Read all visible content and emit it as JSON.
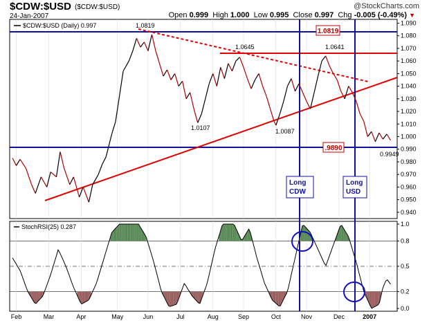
{
  "header": {
    "symbol": "$CDW:$USD",
    "symbol_paren": "($CDW:$USD)",
    "date": "24-Jan-2007",
    "brand": "@StockCharts.com",
    "ohlc": {
      "open_label": "Open",
      "open": "0.999",
      "high_label": "High",
      "high": "1.000",
      "low_label": "Low",
      "low": "0.995",
      "close_label": "Close",
      "close": "0.997",
      "chg_label": "Chg",
      "chg": "-0.005 (-0.49%)"
    }
  },
  "chart_data": [
    {
      "type": "line",
      "legend": "$CDW:$USD (Daily) 0.997",
      "y_range": [
        0.935,
        1.093
      ],
      "y_ticks": [
        "1.090",
        "1.080",
        "1.070",
        "1.060",
        "1.050",
        "1.040",
        "1.030",
        "1.020",
        "1.010",
        "1.000",
        "0.990",
        "0.980",
        "0.970",
        "0.960",
        "0.950",
        "0.940"
      ],
      "x_tick_labels": [
        "Feb",
        "Mar",
        "Apr",
        "May",
        "Jun",
        "Jul",
        "Aug",
        "Sep",
        "Oct",
        "Nov",
        "Dec",
        "2007"
      ],
      "series": [
        {
          "values_rel": [
            [
              0,
              0.983
            ],
            [
              0.01,
              0.977
            ],
            [
              0.02,
              0.982
            ],
            [
              0.035,
              0.975
            ],
            [
              0.05,
              0.962
            ],
            [
              0.06,
              0.955
            ],
            [
              0.075,
              0.968
            ],
            [
              0.09,
              0.96
            ],
            [
              0.1,
              0.972
            ],
            [
              0.115,
              0.968
            ],
            [
              0.125,
              0.988
            ],
            [
              0.135,
              0.975
            ],
            [
              0.15,
              0.962
            ],
            [
              0.16,
              0.968
            ],
            [
              0.175,
              0.952
            ],
            [
              0.185,
              0.96
            ],
            [
              0.2,
              0.948
            ],
            [
              0.21,
              0.962
            ],
            [
              0.225,
              0.97
            ],
            [
              0.235,
              0.978
            ],
            [
              0.245,
              0.984
            ],
            [
              0.26,
              1.002
            ],
            [
              0.27,
              1.012
            ],
            [
              0.28,
              1.032
            ],
            [
              0.29,
              1.052
            ],
            [
              0.305,
              1.06
            ],
            [
              0.315,
              1.068
            ],
            [
              0.325,
              1.078
            ],
            [
              0.335,
              1.071
            ],
            [
              0.345,
              1.075
            ],
            [
              0.355,
              1.068
            ],
            [
              0.365,
              1.081
            ],
            [
              0.375,
              1.068
            ],
            [
              0.385,
              1.058
            ],
            [
              0.395,
              1.048
            ],
            [
              0.405,
              1.053
            ],
            [
              0.415,
              1.045
            ],
            [
              0.425,
              1.05
            ],
            [
              0.435,
              1.04
            ],
            [
              0.445,
              1.044
            ],
            [
              0.455,
              1.03
            ],
            [
              0.465,
              1.035
            ],
            [
              0.475,
              1.022
            ],
            [
              0.485,
              1.011
            ],
            [
              0.495,
              1.018
            ],
            [
              0.505,
              1.03
            ],
            [
              0.515,
              1.042
            ],
            [
              0.525,
              1.05
            ],
            [
              0.535,
              1.04
            ],
            [
              0.545,
              1.055
            ],
            [
              0.555,
              1.046
            ],
            [
              0.565,
              1.058
            ],
            [
              0.575,
              1.052
            ],
            [
              0.585,
              1.06
            ],
            [
              0.595,
              1.063
            ],
            [
              0.605,
              1.055
            ],
            [
              0.615,
              1.046
            ],
            [
              0.625,
              1.038
            ],
            [
              0.635,
              1.045
            ],
            [
              0.645,
              1.05
            ],
            [
              0.655,
              1.04
            ],
            [
              0.665,
              1.032
            ],
            [
              0.675,
              1.022
            ],
            [
              0.685,
              1.012
            ],
            [
              0.69,
              1.009
            ],
            [
              0.7,
              1.018
            ],
            [
              0.71,
              1.028
            ],
            [
              0.72,
              1.04
            ],
            [
              0.73,
              1.046
            ],
            [
              0.74,
              1.036
            ],
            [
              0.75,
              1.042
            ],
            [
              0.76,
              1.035
            ],
            [
              0.77,
              1.028
            ],
            [
              0.78,
              1.022
            ],
            [
              0.79,
              1.035
            ],
            [
              0.8,
              1.048
            ],
            [
              0.81,
              1.06
            ],
            [
              0.82,
              1.064
            ],
            [
              0.83,
              1.056
            ],
            [
              0.84,
              1.05
            ],
            [
              0.85,
              1.045
            ],
            [
              0.86,
              1.036
            ],
            [
              0.87,
              1.03
            ],
            [
              0.88,
              1.04
            ],
            [
              0.89,
              1.035
            ],
            [
              0.9,
              1.028
            ],
            [
              0.91,
              1.018
            ],
            [
              0.92,
              1.012
            ],
            [
              0.93,
              1.0
            ],
            [
              0.94,
              1.004
            ],
            [
              0.95,
              0.996
            ],
            [
              0.96,
              1.003
            ],
            [
              0.97,
              0.998
            ],
            [
              0.98,
              1.002
            ],
            [
              0.99,
              0.997
            ]
          ]
        }
      ],
      "annotations": {
        "points": [
          {
            "label": "1.0819"
          },
          {
            "label": "1.0645"
          },
          {
            "label": "1.0641"
          },
          {
            "label": "1.0107"
          },
          {
            "label": "1.0087"
          }
        ],
        "price_boxes": [
          {
            "label": "1.0819"
          },
          {
            "label": ".9890"
          }
        ],
        "last_price": "0.9949",
        "long_labels": [
          {
            "line1": "Long",
            "line2": "CDW"
          },
          {
            "line1": "Long",
            "line2": "USD"
          }
        ]
      }
    },
    {
      "type": "area",
      "legend": "StochRSI(25) 0.287",
      "y_ticks": [
        "1.0",
        "0.8",
        "0.5",
        "0.2",
        "0.0"
      ],
      "y_range": [
        0,
        1
      ]
    }
  ]
}
